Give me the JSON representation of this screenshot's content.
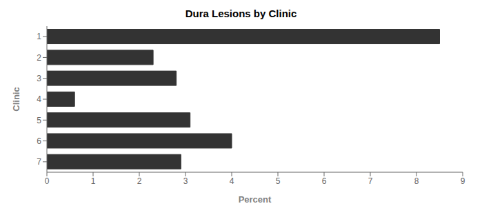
{
  "chart_data": {
    "type": "bar",
    "title": "Dura Lesions by Clinic",
    "xlabel": "Percent",
    "ylabel": "Clinic",
    "categories": [
      "1",
      "2",
      "3",
      "4",
      "5",
      "6",
      "7"
    ],
    "values": [
      8.5,
      2.3,
      2.8,
      0.6,
      3.1,
      4.0,
      2.9
    ],
    "color": "#333333",
    "orientation": "horizontal",
    "xlim": [
      0,
      9
    ],
    "xticks": [
      0,
      1,
      2,
      3,
      4,
      5,
      6,
      7,
      8,
      9
    ],
    "grid": false
  }
}
